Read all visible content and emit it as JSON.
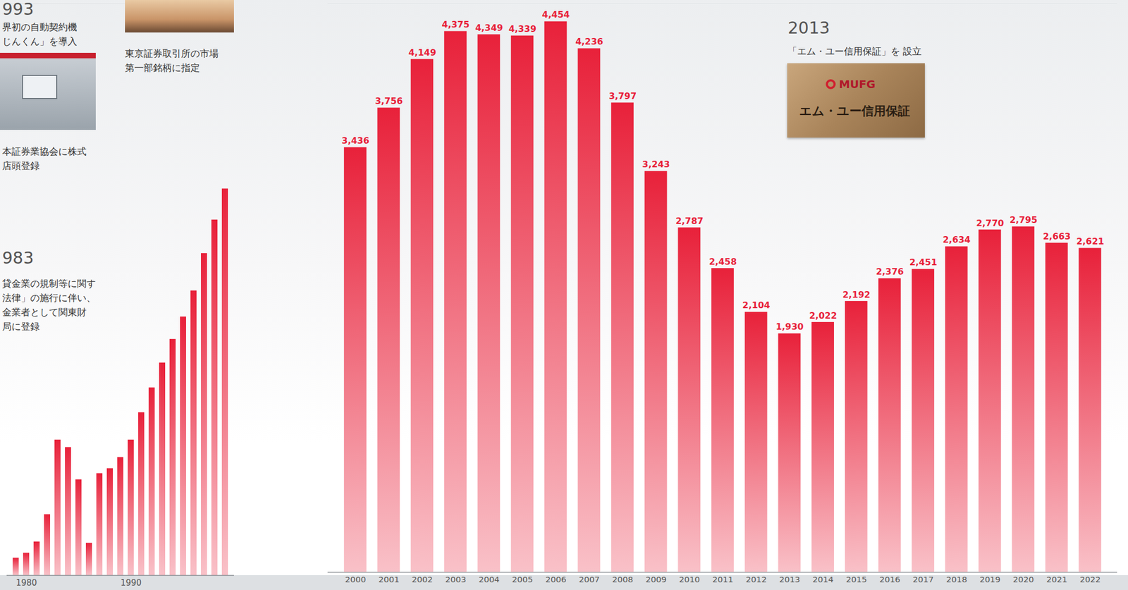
{
  "chart_data": [
    {
      "type": "bar",
      "categories": [
        null,
        "1980",
        null,
        null,
        null,
        null,
        null,
        null,
        null,
        null,
        null,
        "1990",
        null,
        null,
        null,
        null,
        null,
        null,
        null,
        null,
        null
      ],
      "values": [
        140,
        180,
        270,
        490,
        1090,
        1030,
        770,
        260,
        820,
        860,
        950,
        1090,
        1310,
        1510,
        1710,
        1900,
        2080,
        2290,
        2590,
        2860,
        3110
      ],
      "color": "#e8213a",
      "ylim": [
        0,
        4600
      ],
      "tick_labels": "x",
      "data_labels": false
    },
    {
      "type": "bar",
      "categories": [
        "2000",
        "2001",
        "2002",
        "2003",
        "2004",
        "2005",
        "2006",
        "2007",
        "2008",
        "2009",
        "2010",
        "2011",
        "2012",
        "2013",
        "2014",
        "2015",
        "2016",
        "2017",
        "2018",
        "2019",
        "2020",
        "2021",
        "2022"
      ],
      "values": [
        3436,
        3756,
        4149,
        4375,
        4349,
        4339,
        4454,
        4236,
        3797,
        3243,
        2787,
        2458,
        2104,
        1930,
        2022,
        2192,
        2376,
        2451,
        2634,
        2770,
        2795,
        2663,
        2621
      ],
      "value_labels": [
        "3,436",
        "3,756",
        "4,149",
        "4,375",
        "4,349",
        "4,339",
        "4,454",
        "4,236",
        "3,797",
        "3,243",
        "2,787",
        "2,458",
        "2,104",
        "1,930",
        "2,022",
        "2,192",
        "2,376",
        "2,451",
        "2,634",
        "2,770",
        "2,795",
        "2,663",
        "2,621"
      ],
      "color": "#e8213a",
      "ylim": [
        0,
        4600
      ],
      "tick_labels": "x",
      "data_labels": true
    }
  ],
  "annotations": [
    {
      "heading": "993",
      "lines": [
        "界初の自動契約機",
        "じんくん」を導入"
      ]
    },
    {
      "lines": [
        "本証券業協会に株式",
        "店頭登録"
      ]
    },
    {
      "heading": "983",
      "lines": [
        "貸金業の規制等に関す",
        "法律」の施行に伴い、",
        "金業者として関東財",
        "局に登録"
      ]
    },
    {
      "lines": [
        "東京証券取引所の市場",
        "第一部銘柄に指定"
      ]
    },
    {
      "heading": "2013",
      "lines": [
        "「エム・ユー信用保証」を 設立"
      ],
      "image_text": [
        "MUFG",
        "エム・ユー信用保証"
      ]
    }
  ]
}
